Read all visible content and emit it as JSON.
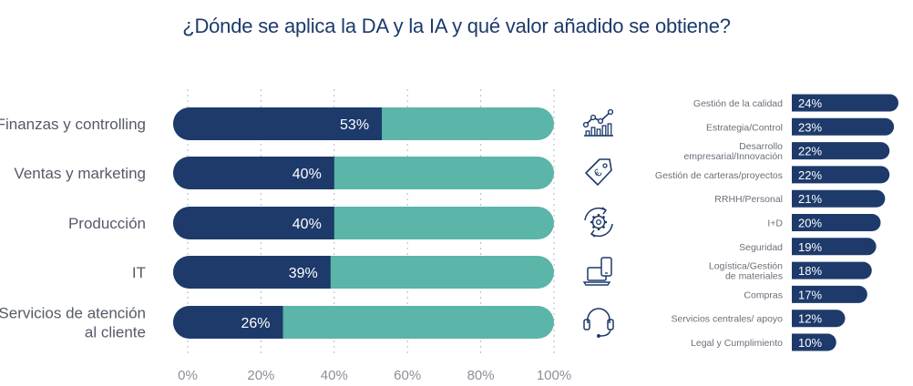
{
  "title": "¿Dónde se aplica la DA y la IA y qué valor añadido se obtiene?",
  "colors": {
    "primary": "#1d3a6b",
    "secondary": "#5bb5a8",
    "grid": "#b5b8c2",
    "text": "#555a66",
    "rank_text": "#6a6f79"
  },
  "chart_data": [
    {
      "type": "bar",
      "orientation": "horizontal",
      "stacked": true,
      "categories": [
        "Finanzas y controlling",
        "Ventas y marketing",
        "Producción",
        "IT",
        "Servicios de atención\nal cliente"
      ],
      "values": [
        53,
        40,
        40,
        39,
        26
      ],
      "value_labels": [
        "53%",
        "40%",
        "40%",
        "39%",
        "26%"
      ],
      "xlim": [
        0,
        100
      ],
      "xticks": [
        "0%",
        "20%",
        "40%",
        "60%",
        "80%",
        "100%"
      ],
      "grid": true,
      "icons": [
        "line-chart-icon",
        "euro-tag-icon",
        "gear-cycle-icon",
        "laptop-phone-icon",
        "headset-icon"
      ]
    },
    {
      "type": "bar",
      "orientation": "horizontal",
      "categories": [
        "Gestión de la calidad",
        "Estrategia/Control",
        "Desarrollo\nempresarial/Innovación",
        "Gestión de carteras/proyectos",
        "RRHH/Personal",
        "I+D",
        "Seguridad",
        "Logística/Gestión\nde materiales",
        "Compras",
        "Servicios centrales/ apoyo",
        "Legal y Cumplimiento"
      ],
      "values": [
        24,
        23,
        22,
        22,
        21,
        20,
        19,
        18,
        17,
        12,
        10
      ],
      "value_labels": [
        "24%",
        "23%",
        "22%",
        "22%",
        "21%",
        "20%",
        "19%",
        "18%",
        "17%",
        "12%",
        "10%"
      ]
    }
  ]
}
